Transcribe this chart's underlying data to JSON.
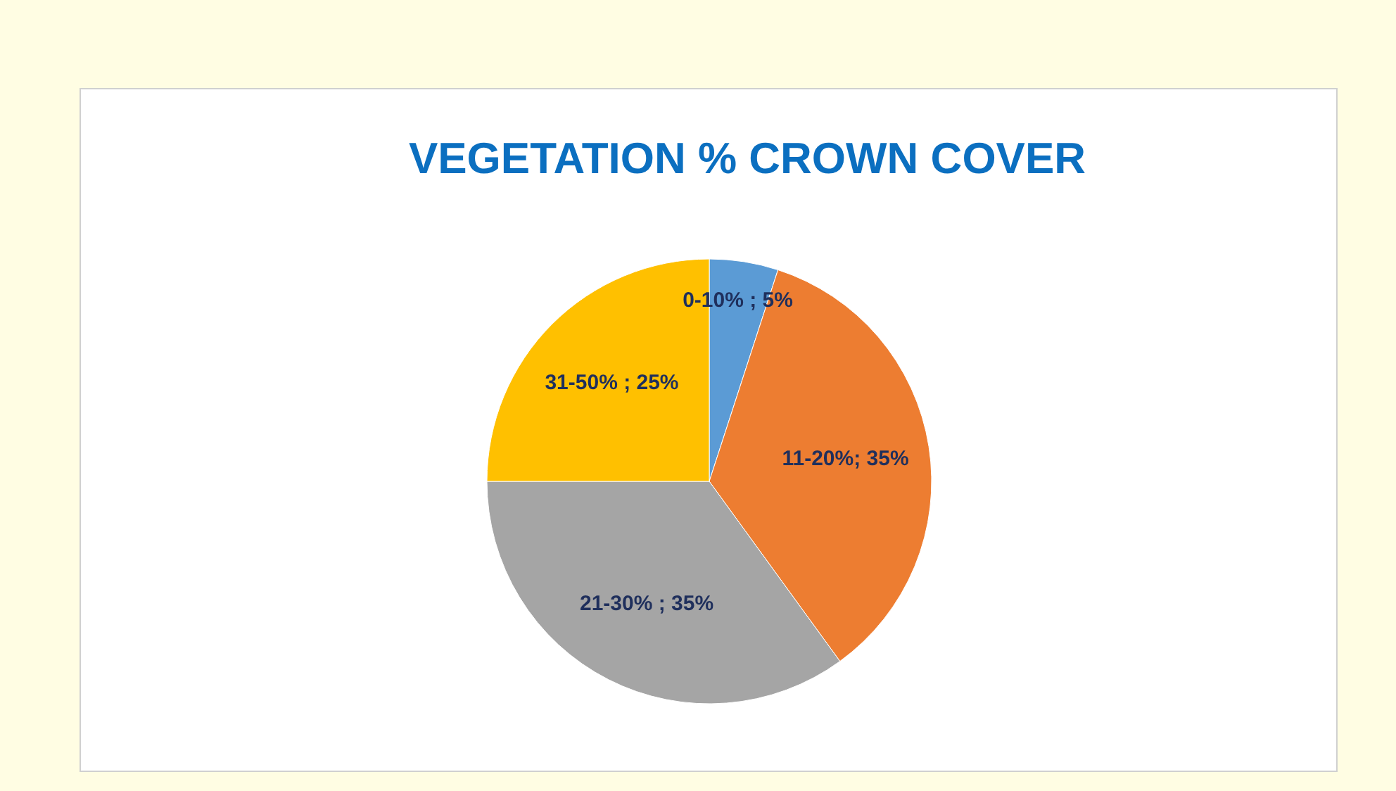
{
  "chart_data": {
    "type": "pie",
    "title": "VEGETATION % CROWN COVER",
    "categories": [
      "0-10%",
      "11-20%",
      "21-30%",
      "31-50%"
    ],
    "values": [
      5,
      35,
      35,
      25
    ],
    "colors": [
      "#5b9bd5",
      "#ed7d31",
      "#a5a5a5",
      "#ffc000"
    ],
    "value_labels": [
      " ; 5%",
      "; 35%",
      " ; 35%",
      " ; 25%"
    ],
    "legend": false
  }
}
